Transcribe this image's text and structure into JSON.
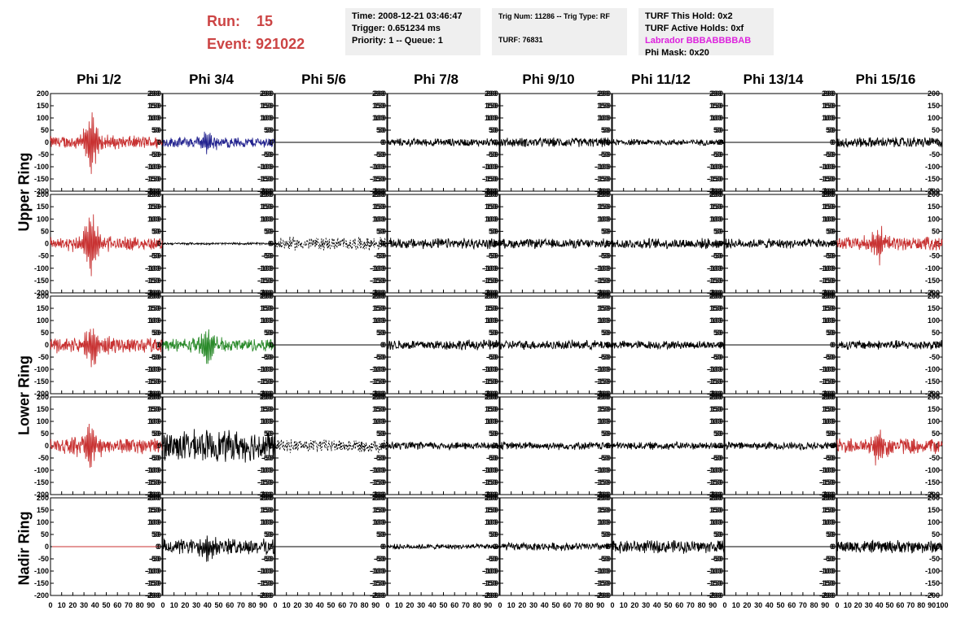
{
  "header": {
    "run_label": "Run:",
    "run_value": "15",
    "event_label": "Event:",
    "event_value": "921022",
    "time": "Time: 2008-12-21 03:46:47",
    "trigger": "Trigger: 0.651234 ms",
    "priority": "Priority: 1 -- Queue: 1",
    "trig_num": "Trig Num: 11286 -- Trig Type: RF",
    "turf": "TURF: 76831",
    "turf_hold": "TURF This Hold: 0x2",
    "turf_active": "TURF Active Holds: 0xf",
    "labrador": "Labrador BBBABBBBAB",
    "phi_mask": "Phi Mask: 0x20"
  },
  "columns": [
    "Phi 1/2",
    "Phi 3/4",
    "Phi 5/6",
    "Phi 7/8",
    "Phi 9/10",
    "Phi 11/12",
    "Phi 13/14",
    "Phi 15/16"
  ],
  "rings": [
    "Upper Ring",
    "Lower Ring",
    "Nadir Ring"
  ],
  "colors": {
    "red": "#c83232",
    "blue": "#23238f",
    "green": "#2a8a2a",
    "black": "#000000",
    "labrador": "#dd22dd",
    "title": "#cc4444"
  },
  "chart_data": {
    "type": "line",
    "ylim": [
      -200,
      200
    ],
    "xlim": [
      0,
      100
    ],
    "y_ticks": [
      200,
      150,
      100,
      50,
      0,
      -50,
      -100,
      -150,
      -200
    ],
    "x_ticks": [
      0,
      10,
      20,
      30,
      40,
      50,
      60,
      70,
      80,
      90,
      100
    ],
    "panels": [
      [
        {
          "color": "red",
          "amp": 25,
          "pulse": 150,
          "at": 36,
          "flat": false
        },
        {
          "color": "blue",
          "amp": 20,
          "pulse": 55,
          "at": 40,
          "flat": false
        },
        {
          "color": "black",
          "amp": 0,
          "pulse": 0,
          "at": 0,
          "flat": true
        },
        {
          "color": "black",
          "amp": 15,
          "pulse": 0,
          "at": 0,
          "flat": false
        },
        {
          "color": "black",
          "amp": 18,
          "pulse": 0,
          "at": 0,
          "flat": false
        },
        {
          "color": "black",
          "amp": 12,
          "pulse": 0,
          "at": 0,
          "flat": false
        },
        {
          "color": "black",
          "amp": 0,
          "pulse": 0,
          "at": 0,
          "flat": true
        },
        {
          "color": "black",
          "amp": 20,
          "pulse": 0,
          "at": 0,
          "flat": false
        }
      ],
      [
        {
          "color": "red",
          "amp": 25,
          "pulse": 170,
          "at": 36,
          "flat": false
        },
        {
          "color": "black",
          "amp": 4,
          "pulse": 0,
          "at": 0,
          "flat": false
        },
        {
          "color": "black",
          "amp": 25,
          "pulse": 0,
          "at": 0,
          "flat": false,
          "dashed": true
        },
        {
          "color": "black",
          "amp": 20,
          "pulse": 0,
          "at": 0,
          "flat": false
        },
        {
          "color": "black",
          "amp": 18,
          "pulse": 0,
          "at": 0,
          "flat": false
        },
        {
          "color": "black",
          "amp": 20,
          "pulse": 0,
          "at": 0,
          "flat": false
        },
        {
          "color": "black",
          "amp": 18,
          "pulse": 0,
          "at": 0,
          "flat": false
        },
        {
          "color": "red",
          "amp": 25,
          "pulse": 85,
          "at": 40,
          "flat": false
        }
      ],
      [
        {
          "color": "red",
          "amp": 30,
          "pulse": 110,
          "at": 38,
          "flat": false
        },
        {
          "color": "green",
          "amp": 25,
          "pulse": 80,
          "at": 40,
          "flat": false
        },
        {
          "color": "black",
          "amp": 0,
          "pulse": 0,
          "at": 0,
          "flat": true
        },
        {
          "color": "black",
          "amp": 20,
          "pulse": 0,
          "at": 0,
          "flat": false
        },
        {
          "color": "black",
          "amp": 18,
          "pulse": 0,
          "at": 0,
          "flat": false
        },
        {
          "color": "black",
          "amp": 16,
          "pulse": 0,
          "at": 0,
          "flat": false
        },
        {
          "color": "black",
          "amp": 0,
          "pulse": 0,
          "at": 0,
          "flat": true
        },
        {
          "color": "black",
          "amp": 18,
          "pulse": 0,
          "at": 0,
          "flat": false
        }
      ],
      [
        {
          "color": "red",
          "amp": 30,
          "pulse": 120,
          "at": 36,
          "flat": false
        },
        {
          "color": "black",
          "amp": 60,
          "pulse": 0,
          "at": 0,
          "flat": false
        },
        {
          "color": "black",
          "amp": 25,
          "pulse": 0,
          "at": 0,
          "flat": false,
          "dashed": true
        },
        {
          "color": "black",
          "amp": 15,
          "pulse": 0,
          "at": 0,
          "flat": false
        },
        {
          "color": "black",
          "amp": 15,
          "pulse": 0,
          "at": 0,
          "flat": false
        },
        {
          "color": "black",
          "amp": 15,
          "pulse": 0,
          "at": 0,
          "flat": false
        },
        {
          "color": "black",
          "amp": 15,
          "pulse": 0,
          "at": 0,
          "flat": false
        },
        {
          "color": "red",
          "amp": 30,
          "pulse": 100,
          "at": 40,
          "flat": false
        }
      ],
      [
        {
          "color": "red",
          "amp": 0,
          "pulse": 0,
          "at": 0,
          "flat": true
        },
        {
          "color": "black",
          "amp": 30,
          "pulse": 70,
          "at": 40,
          "flat": false
        },
        {
          "color": "black",
          "amp": 0,
          "pulse": 0,
          "at": 0,
          "flat": true
        },
        {
          "color": "black",
          "amp": 10,
          "pulse": 0,
          "at": 0,
          "flat": false
        },
        {
          "color": "black",
          "amp": 15,
          "pulse": 0,
          "at": 0,
          "flat": false
        },
        {
          "color": "black",
          "amp": 25,
          "pulse": 0,
          "at": 0,
          "flat": false
        },
        {
          "color": "black",
          "amp": 0,
          "pulse": 0,
          "at": 0,
          "flat": true
        },
        {
          "color": "black",
          "amp": 25,
          "pulse": 0,
          "at": 0,
          "flat": false
        }
      ]
    ]
  }
}
